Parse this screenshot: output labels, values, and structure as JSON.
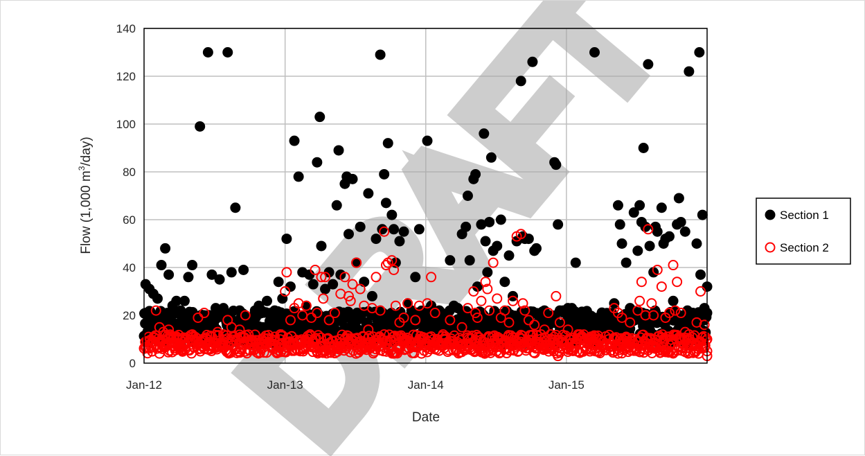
{
  "watermark": "DRAFT",
  "chart_data": {
    "type": "scatter",
    "xlabel": "Date",
    "ylabel_main": "Flow (1,000 m",
    "ylabel_sup": "3",
    "ylabel_tail": "/day)",
    "xlim": [
      "2012-01",
      "2016-01"
    ],
    "ylim": [
      0,
      140
    ],
    "y_ticks": [
      0,
      20,
      40,
      60,
      80,
      100,
      120,
      140
    ],
    "x_ticks": [
      {
        "value": "2012-01",
        "label": "Jan-12"
      },
      {
        "value": "2013-01",
        "label": "Jan-13"
      },
      {
        "value": "2014-01",
        "label": "Jan-14"
      },
      {
        "value": "2015-01",
        "label": "Jan-15"
      }
    ],
    "grid": "on",
    "legend_position": "right",
    "series": [
      {
        "name": "Section 1",
        "color": "#000000",
        "marker": "filled-circle",
        "points": [
          [
            "2012-01-05",
            33
          ],
          [
            "2012-01-15",
            31
          ],
          [
            "2012-01-25",
            29
          ],
          [
            "2012-02-05",
            27
          ],
          [
            "2012-02-15",
            41
          ],
          [
            "2012-02-25",
            48
          ],
          [
            "2012-03-05",
            37
          ],
          [
            "2012-03-15",
            24
          ],
          [
            "2012-03-25",
            26
          ],
          [
            "2012-04-05",
            22
          ],
          [
            "2012-04-15",
            26
          ],
          [
            "2012-04-25",
            36
          ],
          [
            "2012-05-05",
            41
          ],
          [
            "2012-05-15",
            19
          ],
          [
            "2012-05-25",
            99
          ],
          [
            "2012-06-05",
            20
          ],
          [
            "2012-06-15",
            130
          ],
          [
            "2012-06-25",
            37
          ],
          [
            "2012-07-05",
            23
          ],
          [
            "2012-07-15",
            35
          ],
          [
            "2012-07-25",
            23
          ],
          [
            "2012-08-05",
            130
          ],
          [
            "2012-08-15",
            38
          ],
          [
            "2012-08-25",
            65
          ],
          [
            "2012-09-05",
            22
          ],
          [
            "2012-09-15",
            39
          ],
          [
            "2012-09-25",
            18
          ],
          [
            "2012-10-05",
            16
          ],
          [
            "2012-10-15",
            22
          ],
          [
            "2012-10-25",
            24
          ],
          [
            "2012-11-05",
            15
          ],
          [
            "2012-11-15",
            26
          ],
          [
            "2012-11-25",
            18
          ],
          [
            "2012-12-05",
            22
          ],
          [
            "2012-12-15",
            34
          ],
          [
            "2012-12-25",
            27
          ],
          [
            "2013-01-05",
            52
          ],
          [
            "2013-01-15",
            32
          ],
          [
            "2013-01-25",
            93
          ],
          [
            "2013-02-05",
            78
          ],
          [
            "2013-02-15",
            38
          ],
          [
            "2013-02-25",
            24
          ],
          [
            "2013-03-05",
            37
          ],
          [
            "2013-03-15",
            33
          ],
          [
            "2013-03-25",
            84
          ],
          [
            "2013-04-01",
            103
          ],
          [
            "2013-04-05",
            49
          ],
          [
            "2013-04-15",
            31
          ],
          [
            "2013-04-25",
            38
          ],
          [
            "2013-05-05",
            33
          ],
          [
            "2013-05-15",
            66
          ],
          [
            "2013-05-20",
            89
          ],
          [
            "2013-05-25",
            37
          ],
          [
            "2013-06-05",
            75
          ],
          [
            "2013-06-10",
            78
          ],
          [
            "2013-06-15",
            54
          ],
          [
            "2013-06-25",
            77
          ],
          [
            "2013-07-05",
            42
          ],
          [
            "2013-07-15",
            57
          ],
          [
            "2013-07-25",
            34
          ],
          [
            "2013-08-05",
            71
          ],
          [
            "2013-08-15",
            28
          ],
          [
            "2013-08-25",
            52
          ],
          [
            "2013-09-05",
            129
          ],
          [
            "2013-09-10",
            56
          ],
          [
            "2013-09-15",
            79
          ],
          [
            "2013-09-20",
            67
          ],
          [
            "2013-09-25",
            92
          ],
          [
            "2013-10-05",
            62
          ],
          [
            "2013-10-10",
            56
          ],
          [
            "2013-10-15",
            42
          ],
          [
            "2013-10-25",
            51
          ],
          [
            "2013-11-05",
            55
          ],
          [
            "2013-11-15",
            25
          ],
          [
            "2013-11-25",
            22
          ],
          [
            "2013-12-05",
            36
          ],
          [
            "2013-12-15",
            56
          ],
          [
            "2013-12-25",
            21
          ],
          [
            "2014-01-05",
            93
          ],
          [
            "2014-01-15",
            24
          ],
          [
            "2014-02-05",
            22
          ],
          [
            "2014-02-15",
            19
          ],
          [
            "2014-03-05",
            43
          ],
          [
            "2014-03-15",
            24
          ],
          [
            "2014-03-25",
            23
          ],
          [
            "2014-04-05",
            54
          ],
          [
            "2014-04-15",
            57
          ],
          [
            "2014-04-20",
            70
          ],
          [
            "2014-04-25",
            43
          ],
          [
            "2014-05-05",
            77
          ],
          [
            "2014-05-10",
            79
          ],
          [
            "2014-05-15",
            32
          ],
          [
            "2014-05-25",
            58
          ],
          [
            "2014-06-01",
            96
          ],
          [
            "2014-06-05",
            51
          ],
          [
            "2014-06-10",
            38
          ],
          [
            "2014-06-15",
            59
          ],
          [
            "2014-06-20",
            86
          ],
          [
            "2014-06-25",
            47
          ],
          [
            "2014-07-05",
            49
          ],
          [
            "2014-07-15",
            60
          ],
          [
            "2014-07-25",
            34
          ],
          [
            "2014-08-05",
            45
          ],
          [
            "2014-08-15",
            28
          ],
          [
            "2014-08-25",
            51
          ],
          [
            "2014-09-05",
            118
          ],
          [
            "2014-09-10",
            53
          ],
          [
            "2014-09-15",
            52
          ],
          [
            "2014-09-25",
            52
          ],
          [
            "2014-10-05",
            126
          ],
          [
            "2014-10-10",
            47
          ],
          [
            "2014-10-15",
            48
          ],
          [
            "2014-11-05",
            22
          ],
          [
            "2014-11-15",
            19
          ],
          [
            "2014-12-01",
            84
          ],
          [
            "2014-12-05",
            83
          ],
          [
            "2014-12-10",
            58
          ],
          [
            "2014-12-15",
            22
          ],
          [
            "2015-01-05",
            23
          ],
          [
            "2015-01-15",
            23
          ],
          [
            "2015-01-25",
            42
          ],
          [
            "2015-02-05",
            20
          ],
          [
            "2015-02-15",
            18
          ],
          [
            "2015-03-05",
            17
          ],
          [
            "2015-03-15",
            130
          ],
          [
            "2015-04-05",
            19
          ],
          [
            "2015-04-15",
            20
          ],
          [
            "2015-05-05",
            25
          ],
          [
            "2015-05-15",
            66
          ],
          [
            "2015-05-20",
            58
          ],
          [
            "2015-05-25",
            50
          ],
          [
            "2015-06-05",
            42
          ],
          [
            "2015-06-15",
            23
          ],
          [
            "2015-06-25",
            63
          ],
          [
            "2015-07-05",
            47
          ],
          [
            "2015-07-10",
            66
          ],
          [
            "2015-07-15",
            59
          ],
          [
            "2015-07-20",
            90
          ],
          [
            "2015-07-25",
            57
          ],
          [
            "2015-08-01",
            125
          ],
          [
            "2015-08-05",
            49
          ],
          [
            "2015-08-15",
            38
          ],
          [
            "2015-08-20",
            57
          ],
          [
            "2015-08-25",
            55
          ],
          [
            "2015-09-05",
            65
          ],
          [
            "2015-09-10",
            50
          ],
          [
            "2015-09-15",
            52
          ],
          [
            "2015-09-25",
            53
          ],
          [
            "2015-10-05",
            26
          ],
          [
            "2015-10-15",
            58
          ],
          [
            "2015-10-20",
            69
          ],
          [
            "2015-10-25",
            59
          ],
          [
            "2015-11-05",
            55
          ],
          [
            "2015-11-15",
            122
          ],
          [
            "2015-11-25",
            21
          ],
          [
            "2015-12-05",
            50
          ],
          [
            "2015-12-12",
            130
          ],
          [
            "2015-12-15",
            37
          ],
          [
            "2015-12-20",
            62
          ],
          [
            "2015-12-25",
            23
          ],
          [
            "2016-01-01",
            32
          ],
          [
            "2016-01-01",
            21
          ]
        ]
      },
      {
        "name": "Section 2",
        "color": "#ff0000",
        "marker": "open-circle",
        "points": [
          [
            "2012-02-01",
            22
          ],
          [
            "2012-02-10",
            15
          ],
          [
            "2012-02-20",
            13
          ],
          [
            "2012-03-05",
            14
          ],
          [
            "2012-03-20",
            11
          ],
          [
            "2012-04-10",
            10
          ],
          [
            "2012-05-05",
            12
          ],
          [
            "2012-05-20",
            19
          ],
          [
            "2012-06-05",
            21
          ],
          [
            "2012-06-25",
            11
          ],
          [
            "2012-07-10",
            13
          ],
          [
            "2012-07-25",
            12
          ],
          [
            "2012-08-05",
            18
          ],
          [
            "2012-08-15",
            15
          ],
          [
            "2012-09-05",
            14
          ],
          [
            "2012-09-20",
            20
          ],
          [
            "2012-10-10",
            9
          ],
          [
            "2012-11-05",
            8
          ],
          [
            "2012-12-05",
            9
          ],
          [
            "2012-12-20",
            12
          ],
          [
            "2013-01-01",
            30
          ],
          [
            "2013-01-05",
            38
          ],
          [
            "2013-01-15",
            18
          ],
          [
            "2013-01-25",
            23
          ],
          [
            "2013-02-05",
            25
          ],
          [
            "2013-02-15",
            20
          ],
          [
            "2013-02-25",
            24
          ],
          [
            "2013-03-10",
            19
          ],
          [
            "2013-03-20",
            39
          ],
          [
            "2013-03-25",
            21
          ],
          [
            "2013-04-05",
            36
          ],
          [
            "2013-04-10",
            27
          ],
          [
            "2013-04-15",
            36
          ],
          [
            "2013-04-25",
            18
          ],
          [
            "2013-05-10",
            21
          ],
          [
            "2013-05-25",
            29
          ],
          [
            "2013-06-05",
            36
          ],
          [
            "2013-06-15",
            28
          ],
          [
            "2013-06-20",
            26
          ],
          [
            "2013-06-25",
            33
          ],
          [
            "2013-07-05",
            42
          ],
          [
            "2013-07-15",
            31
          ],
          [
            "2013-07-25",
            24
          ],
          [
            "2013-08-05",
            14
          ],
          [
            "2013-08-15",
            23
          ],
          [
            "2013-08-25",
            36
          ],
          [
            "2013-09-05",
            22
          ],
          [
            "2013-09-15",
            55
          ],
          [
            "2013-09-20",
            41
          ],
          [
            "2013-09-25",
            42
          ],
          [
            "2013-10-05",
            43
          ],
          [
            "2013-10-10",
            39
          ],
          [
            "2013-10-15",
            24
          ],
          [
            "2013-10-25",
            17
          ],
          [
            "2013-11-05",
            19
          ],
          [
            "2013-11-15",
            25
          ],
          [
            "2013-12-05",
            18
          ],
          [
            "2013-12-15",
            24
          ],
          [
            "2014-01-05",
            25
          ],
          [
            "2014-01-15",
            36
          ],
          [
            "2014-01-25",
            21
          ],
          [
            "2014-02-15",
            12
          ],
          [
            "2014-03-05",
            18
          ],
          [
            "2014-04-05",
            15
          ],
          [
            "2014-04-20",
            23
          ],
          [
            "2014-05-05",
            30
          ],
          [
            "2014-05-10",
            21
          ],
          [
            "2014-05-15",
            19
          ],
          [
            "2014-05-25",
            26
          ],
          [
            "2014-06-05",
            34
          ],
          [
            "2014-06-10",
            31
          ],
          [
            "2014-06-15",
            22
          ],
          [
            "2014-06-25",
            42
          ],
          [
            "2014-07-05",
            27
          ],
          [
            "2014-07-15",
            19
          ],
          [
            "2014-07-25",
            22
          ],
          [
            "2014-08-05",
            17
          ],
          [
            "2014-08-15",
            26
          ],
          [
            "2014-08-25",
            53
          ],
          [
            "2014-09-05",
            54
          ],
          [
            "2014-09-10",
            25
          ],
          [
            "2014-09-15",
            22
          ],
          [
            "2014-09-25",
            18
          ],
          [
            "2014-10-10",
            16
          ],
          [
            "2014-11-05",
            14
          ],
          [
            "2014-11-15",
            21
          ],
          [
            "2014-12-05",
            28
          ],
          [
            "2014-12-10",
            3
          ],
          [
            "2014-12-15",
            17
          ],
          [
            "2015-01-05",
            14
          ],
          [
            "2015-02-05",
            12
          ],
          [
            "2015-03-05",
            10
          ],
          [
            "2015-04-05",
            9
          ],
          [
            "2015-05-05",
            23
          ],
          [
            "2015-05-15",
            21
          ],
          [
            "2015-05-25",
            19
          ],
          [
            "2015-06-05",
            11
          ],
          [
            "2015-06-15",
            17
          ],
          [
            "2015-07-05",
            22
          ],
          [
            "2015-07-10",
            26
          ],
          [
            "2015-07-15",
            34
          ],
          [
            "2015-07-25",
            20
          ],
          [
            "2015-08-01",
            56
          ],
          [
            "2015-08-10",
            25
          ],
          [
            "2015-08-15",
            20
          ],
          [
            "2015-08-25",
            39
          ],
          [
            "2015-09-05",
            32
          ],
          [
            "2015-09-15",
            19
          ],
          [
            "2015-09-25",
            21
          ],
          [
            "2015-10-05",
            41
          ],
          [
            "2015-10-10",
            22
          ],
          [
            "2015-10-15",
            34
          ],
          [
            "2015-10-25",
            21
          ],
          [
            "2015-11-05",
            13
          ],
          [
            "2015-11-15",
            12
          ],
          [
            "2015-12-05",
            17
          ],
          [
            "2015-12-15",
            30
          ],
          [
            "2015-12-25",
            16
          ],
          [
            "2016-01-01",
            5
          ],
          [
            "2016-01-01",
            3
          ],
          [
            "2016-01-01",
            10
          ]
        ]
      }
    ]
  }
}
